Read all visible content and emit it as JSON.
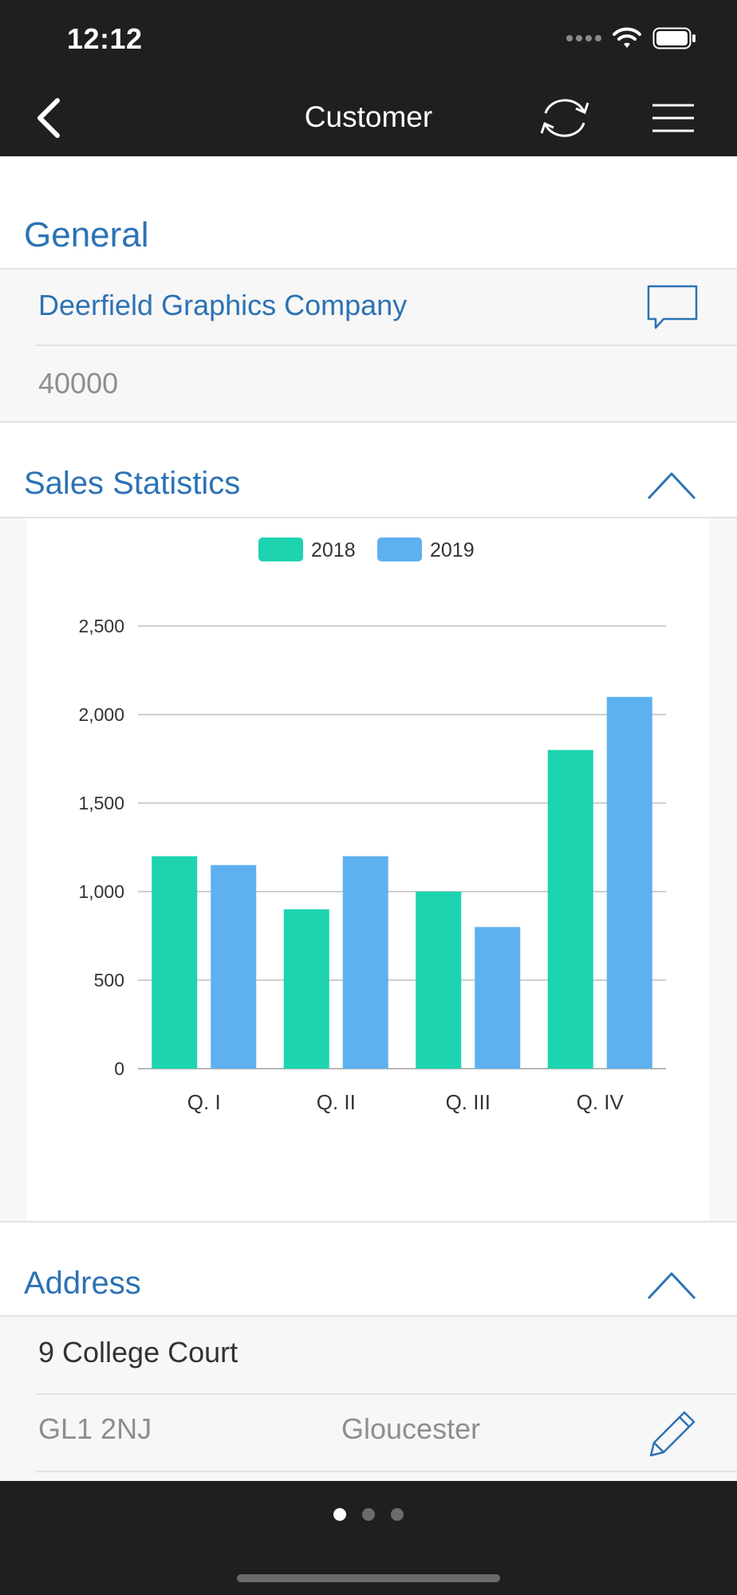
{
  "status": {
    "time": "12:12"
  },
  "nav": {
    "title": "Customer"
  },
  "general": {
    "title": "General",
    "name": "Deerfield Graphics Company",
    "number": "40000"
  },
  "sales": {
    "title": "Sales Statistics"
  },
  "chart_data": {
    "type": "bar",
    "title": "",
    "xlabel": "",
    "ylabel": "",
    "categories": [
      "Q. I",
      "Q. II",
      "Q. III",
      "Q. IV"
    ],
    "series": [
      {
        "name": "2018",
        "values": [
          1200,
          900,
          1000,
          1800
        ],
        "color": "#1dd3b0"
      },
      {
        "name": "2019",
        "values": [
          1150,
          1200,
          800,
          2100
        ],
        "color": "#5db1ef"
      }
    ],
    "ylim": [
      0,
      2500
    ],
    "yticks": [
      0,
      500,
      1000,
      1500,
      2000,
      2500
    ],
    "ytick_labels": [
      "0",
      "500",
      "1,000",
      "1,500",
      "2,000",
      "2,500"
    ],
    "grid": true,
    "legend": "top-center"
  },
  "address": {
    "title": "Address",
    "street": "9 College Court",
    "postcode": "GL1 2NJ",
    "city": "Gloucester"
  },
  "pager": {
    "count": 3,
    "active": 0
  },
  "colors": {
    "accent": "#2c72b5",
    "bar_dark": "#1f1f1f",
    "series_2018": "#1dd3b0",
    "series_2019": "#5db1ef"
  }
}
